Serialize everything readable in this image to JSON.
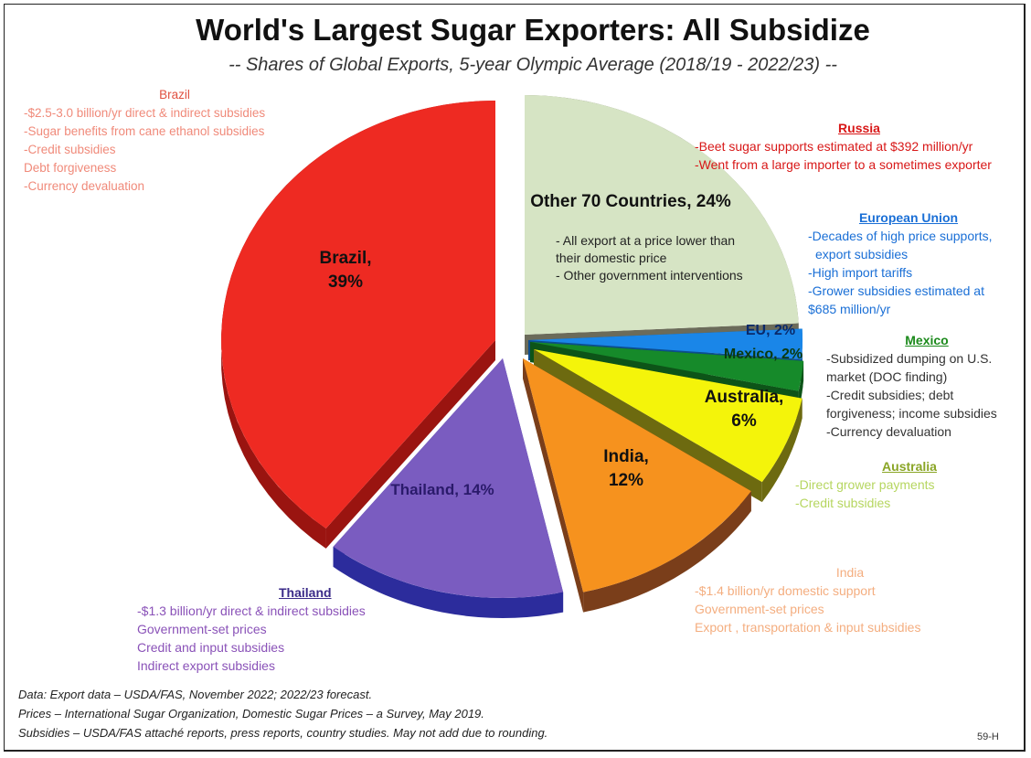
{
  "title": "World's Largest Sugar Exporters: All Subsidize",
  "subtitle": "-- Shares of Global Exports, 5-year Olympic Average (2018/19 - 2022/23) --",
  "chart_data": {
    "type": "pie",
    "title": "World's Largest Sugar Exporters: All Subsidize",
    "subtitle": "-- Shares of Global Exports, 5-year Olympic Average (2018/19 - 2022/23) --",
    "slices": [
      {
        "name": "Other 70 Countries",
        "value": 24,
        "label": "Other 70 Countries, 24%",
        "color": "#d6e4c4",
        "notes": [
          "- All export at a price lower than",
          "their domestic price",
          "- Other government interventions"
        ]
      },
      {
        "name": "EU",
        "value": 2,
        "label": "EU, 2%",
        "color": "#1a86e8"
      },
      {
        "name": "Mexico",
        "value": 2,
        "label": "Mexico, 2%",
        "color": "#168a2a"
      },
      {
        "name": "Australia",
        "value": 6,
        "label_lines": [
          "Australia,",
          "6%"
        ],
        "color": "#f4f40a"
      },
      {
        "name": "India",
        "value": 12,
        "label_lines": [
          "India,",
          "12%"
        ],
        "color": "#f6921e"
      },
      {
        "name": "Thailand",
        "value": 14,
        "label": "Thailand, 14%",
        "color": "#7a5cc0"
      },
      {
        "name": "Brazil",
        "value": 39,
        "label_lines": [
          "Brazil,",
          "39%"
        ],
        "color": "#ee2a22"
      }
    ]
  },
  "annotations": {
    "brazil": {
      "heading": "Brazil",
      "lines": [
        "-$2.5-3.0 billion/yr direct & indirect subsidies",
        "-Sugar benefits from cane ethanol subsidies",
        "-Credit subsidies",
        " Debt forgiveness",
        "-Currency devaluation"
      ]
    },
    "russia": {
      "heading": "Russia",
      "lines": [
        "-Beet sugar supports estimated at $392 million/yr",
        "-Went from a large importer to a sometimes exporter"
      ]
    },
    "eu": {
      "heading": "European Union",
      "lines": [
        "-Decades of high price supports,",
        "  export subsidies",
        "-High import tariffs",
        "-Grower subsidies estimated at",
        "$685 million/yr"
      ]
    },
    "mexico": {
      "heading": "Mexico",
      "lines": [
        "-Subsidized dumping on U.S.",
        "market (DOC finding)",
        "-Credit subsidies; debt",
        "forgiveness; income subsidies",
        "-Currency devaluation"
      ]
    },
    "australia": {
      "heading": "Australia",
      "lines": [
        "-Direct grower payments",
        "-Credit subsidies"
      ]
    },
    "india": {
      "heading": "India",
      "lines": [
        "-$1.4 billion/yr domestic support",
        " Government-set prices",
        " Export , transportation & input subsidies"
      ]
    },
    "thailand": {
      "heading": "Thailand",
      "lines": [
        "-$1.3 billion/yr direct & indirect subsidies",
        " Government-set prices",
        " Credit and input subsidies",
        " Indirect export subsidies"
      ]
    }
  },
  "footer": {
    "line1": "Data: Export data – USDA/FAS, November 2022; 2022/23 forecast.",
    "line2": "Prices – International Sugar Organization, Domestic Sugar Prices – a Survey, May 2019.",
    "line3": "Subsidies – USDA/FAS attaché reports, press reports, country studies. May not add due to rounding."
  },
  "page_code": "59-H"
}
